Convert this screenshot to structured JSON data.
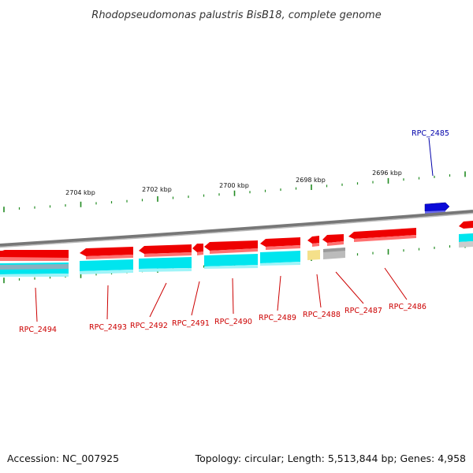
{
  "title": "Rhodopseudomonas palustris BisB18, complete genome",
  "footer": {
    "accession": "Accession: NC_007925",
    "topology": "Topology: circular; Length: 5,513,844 bp; Genes: 4,958"
  },
  "colors": {
    "gene_forward": "#0000dd",
    "gene_reverse": "#ee0000",
    "label_reverse": "#cc0000",
    "label_forward": "#0000aa",
    "cds_track": "#00e5ee",
    "rna_track": "#f5e08a",
    "other_track": "#bbbbbb",
    "backbone": "#888888",
    "ticks": "#228b22"
  },
  "scale_labels": [
    "2704 kbp",
    "2702 kbp",
    "2700 kbp",
    "2698 kbp",
    "2696 kbp"
  ],
  "genes": [
    {
      "label": "RPC_2485",
      "strand": "forward"
    },
    {
      "label": "RPC_2486",
      "strand": "reverse"
    },
    {
      "label": "RPC_2487",
      "strand": "reverse"
    },
    {
      "label": "RPC_2488",
      "strand": "reverse"
    },
    {
      "label": "RPC_2489",
      "strand": "reverse"
    },
    {
      "label": "RPC_2490",
      "strand": "reverse"
    },
    {
      "label": "RPC_2491",
      "strand": "reverse"
    },
    {
      "label": "RPC_2492",
      "strand": "reverse"
    },
    {
      "label": "RPC_2493",
      "strand": "reverse"
    },
    {
      "label": "RPC_2494",
      "strand": "reverse"
    }
  ]
}
